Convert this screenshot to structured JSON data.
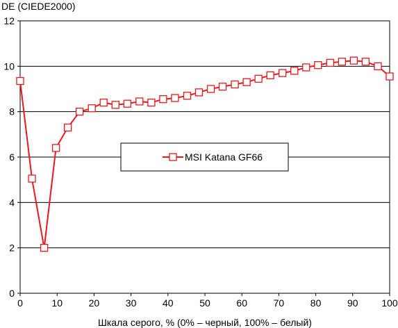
{
  "chart_data": {
    "type": "line",
    "title": "",
    "ylabel": "DE (CIEDE2000)",
    "xlabel": "Шкала серого, % (0% – черный, 100% – белый)",
    "xlim": [
      0,
      100
    ],
    "ylim": [
      0,
      12
    ],
    "x_ticks": [
      0,
      10,
      20,
      30,
      40,
      50,
      60,
      70,
      80,
      90,
      100
    ],
    "y_ticks": [
      0,
      2,
      4,
      6,
      8,
      10,
      12
    ],
    "grid": "horizontal",
    "legend_position": "center",
    "series": [
      {
        "name": "MSI Katana GF66",
        "color": "#e8191d",
        "marker": "square-open",
        "x": [
          0,
          3.2,
          6.5,
          9.7,
          12.9,
          16.1,
          19.4,
          22.6,
          25.8,
          29.0,
          32.3,
          35.5,
          38.7,
          41.9,
          45.2,
          48.4,
          51.6,
          54.8,
          58.1,
          61.3,
          64.5,
          67.7,
          71.0,
          74.2,
          77.4,
          80.6,
          83.9,
          87.1,
          90.3,
          93.5,
          96.8,
          100
        ],
        "values": [
          9.35,
          5.05,
          2.0,
          6.4,
          7.3,
          8.0,
          8.15,
          8.4,
          8.3,
          8.35,
          8.45,
          8.4,
          8.55,
          8.6,
          8.7,
          8.85,
          9.0,
          9.1,
          9.2,
          9.3,
          9.45,
          9.6,
          9.7,
          9.8,
          9.95,
          10.05,
          10.15,
          10.2,
          10.25,
          10.2,
          10.0,
          9.55
        ]
      }
    ]
  }
}
